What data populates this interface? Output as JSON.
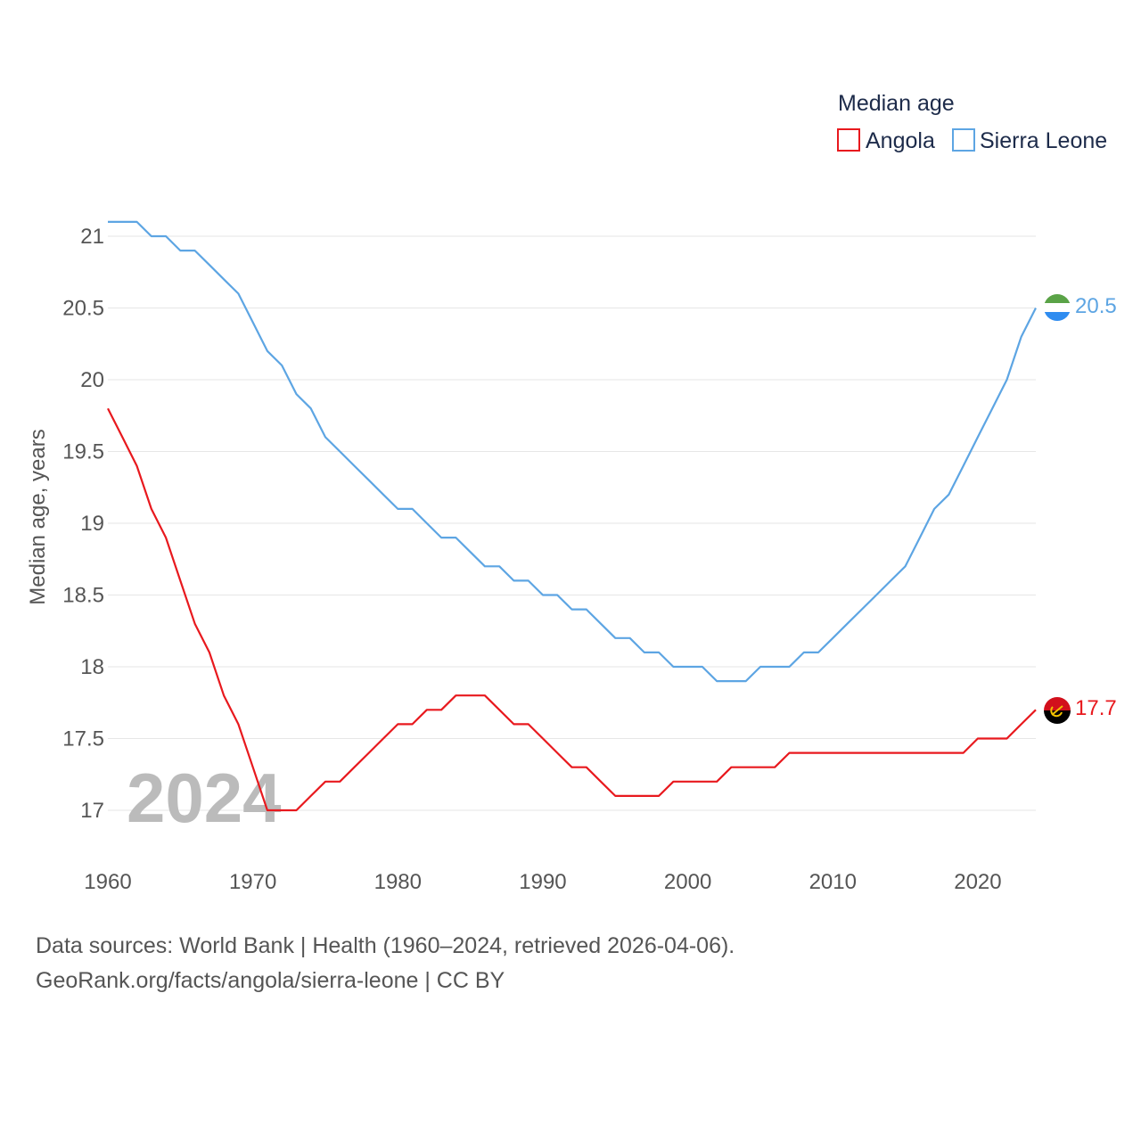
{
  "chart_data": {
    "type": "line",
    "title": "Median age",
    "ylabel": "Median age, years",
    "xlabel": "",
    "xlim": [
      1960,
      2024
    ],
    "ylim": [
      16.6,
      21.2
    ],
    "x_ticks": [
      1960,
      1970,
      1980,
      1990,
      2000,
      2010,
      2020
    ],
    "y_ticks": [
      17,
      17.5,
      18,
      18.5,
      19,
      19.5,
      20,
      20.5,
      21
    ],
    "y_tick_labels": [
      "17",
      "17.5",
      "18",
      "18.5",
      "19",
      "19.5",
      "20",
      "20.5",
      "21"
    ],
    "x_tick_labels": [
      "1960",
      "1970",
      "1980",
      "1990",
      "2000",
      "2010",
      "2020"
    ],
    "grid": true,
    "legend_position": "top-right",
    "x": [
      1960,
      1961,
      1962,
      1963,
      1964,
      1965,
      1966,
      1967,
      1968,
      1969,
      1970,
      1971,
      1972,
      1973,
      1974,
      1975,
      1976,
      1977,
      1978,
      1979,
      1980,
      1981,
      1982,
      1983,
      1984,
      1985,
      1986,
      1987,
      1988,
      1989,
      1990,
      1991,
      1992,
      1993,
      1994,
      1995,
      1996,
      1997,
      1998,
      1999,
      2000,
      2001,
      2002,
      2003,
      2004,
      2005,
      2006,
      2007,
      2008,
      2009,
      2010,
      2011,
      2012,
      2013,
      2014,
      2015,
      2016,
      2017,
      2018,
      2019,
      2020,
      2021,
      2022,
      2023,
      2024
    ],
    "series": [
      {
        "name": "Angola",
        "color": "#e8191e",
        "end_label": "17.7",
        "values": [
          19.8,
          19.6,
          19.4,
          19.1,
          18.9,
          18.6,
          18.3,
          18.1,
          17.8,
          17.6,
          17.3,
          17.0,
          17.0,
          17.0,
          17.1,
          17.2,
          17.2,
          17.3,
          17.4,
          17.5,
          17.6,
          17.6,
          17.7,
          17.7,
          17.8,
          17.8,
          17.8,
          17.7,
          17.6,
          17.6,
          17.5,
          17.4,
          17.3,
          17.3,
          17.2,
          17.1,
          17.1,
          17.1,
          17.1,
          17.2,
          17.2,
          17.2,
          17.2,
          17.3,
          17.3,
          17.3,
          17.3,
          17.4,
          17.4,
          17.4,
          17.4,
          17.4,
          17.4,
          17.4,
          17.4,
          17.4,
          17.4,
          17.4,
          17.4,
          17.4,
          17.5,
          17.5,
          17.5,
          17.6,
          17.7
        ]
      },
      {
        "name": "Sierra Leone",
        "color": "#5da5e3",
        "end_label": "20.5",
        "values": [
          21.1,
          21.1,
          21.1,
          21.0,
          21.0,
          20.9,
          20.9,
          20.8,
          20.7,
          20.6,
          20.4,
          20.2,
          20.1,
          19.9,
          19.8,
          19.6,
          19.5,
          19.4,
          19.3,
          19.2,
          19.1,
          19.1,
          19.0,
          18.9,
          18.9,
          18.8,
          18.7,
          18.7,
          18.6,
          18.6,
          18.5,
          18.5,
          18.4,
          18.4,
          18.3,
          18.2,
          18.2,
          18.1,
          18.1,
          18.0,
          18.0,
          18.0,
          17.9,
          17.9,
          17.9,
          18.0,
          18.0,
          18.0,
          18.1,
          18.1,
          18.2,
          18.3,
          18.4,
          18.5,
          18.6,
          18.7,
          18.9,
          19.1,
          19.2,
          19.4,
          19.6,
          19.8,
          20.0,
          20.3,
          20.5
        ]
      }
    ],
    "annotation": "2024"
  },
  "source": {
    "line1": "Data sources: World Bank | Health (1960–2024, retrieved 2026-04-06).",
    "line2": "GeoRank.org/facts/angola/sierra-leone | CC BY"
  },
  "flags": {
    "angola": "angola-flag-icon",
    "sierra_leone": "sierra-leone-flag-icon"
  }
}
